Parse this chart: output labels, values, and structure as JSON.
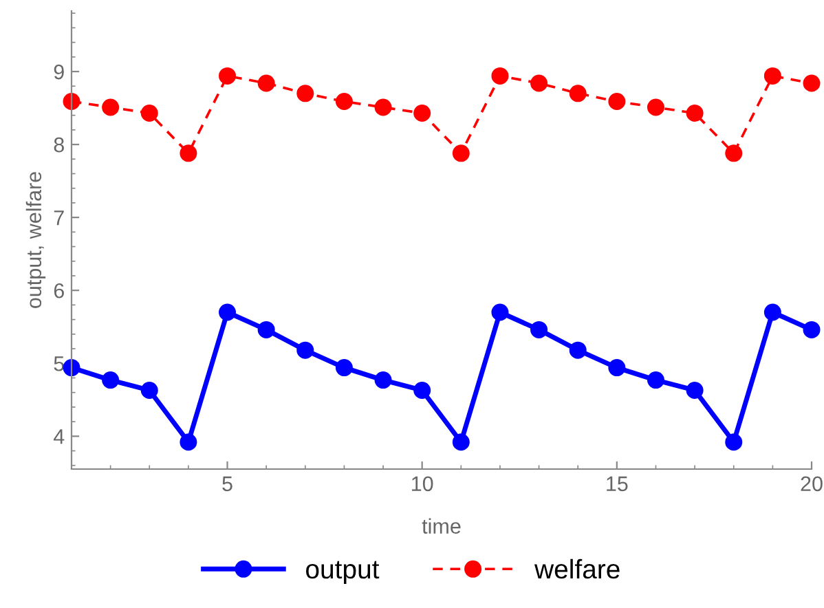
{
  "chart_data": {
    "type": "line",
    "xlabel": "time",
    "ylabel": "output, welfare",
    "x": [
      1,
      2,
      3,
      4,
      5,
      6,
      7,
      8,
      9,
      10,
      11,
      12,
      13,
      14,
      15,
      16,
      17,
      18,
      19,
      20
    ],
    "series": [
      {
        "name": "output",
        "color": "#0000ff",
        "line_style": "solid",
        "values": [
          4.94,
          4.77,
          4.63,
          3.92,
          5.7,
          5.46,
          5.18,
          4.94,
          4.77,
          4.63,
          3.92,
          5.7,
          5.46,
          5.18,
          4.94,
          4.77,
          4.63,
          3.92,
          5.7,
          5.46
        ]
      },
      {
        "name": "welfare",
        "color": "#ff0000",
        "line_style": "dashed",
        "values": [
          8.59,
          8.51,
          8.43,
          7.88,
          8.94,
          8.84,
          8.7,
          8.59,
          8.51,
          8.43,
          7.88,
          8.94,
          8.84,
          8.7,
          8.59,
          8.51,
          8.43,
          7.88,
          8.94,
          8.84
        ]
      }
    ],
    "xlim": [
      1,
      20
    ],
    "xticks": [
      5,
      10,
      15,
      20
    ],
    "ylim": [
      3.55,
      9.83
    ],
    "yticks": [
      4,
      5,
      6,
      7,
      8,
      9
    ],
    "marker": "circle",
    "grid": false,
    "legend": "bottom"
  }
}
